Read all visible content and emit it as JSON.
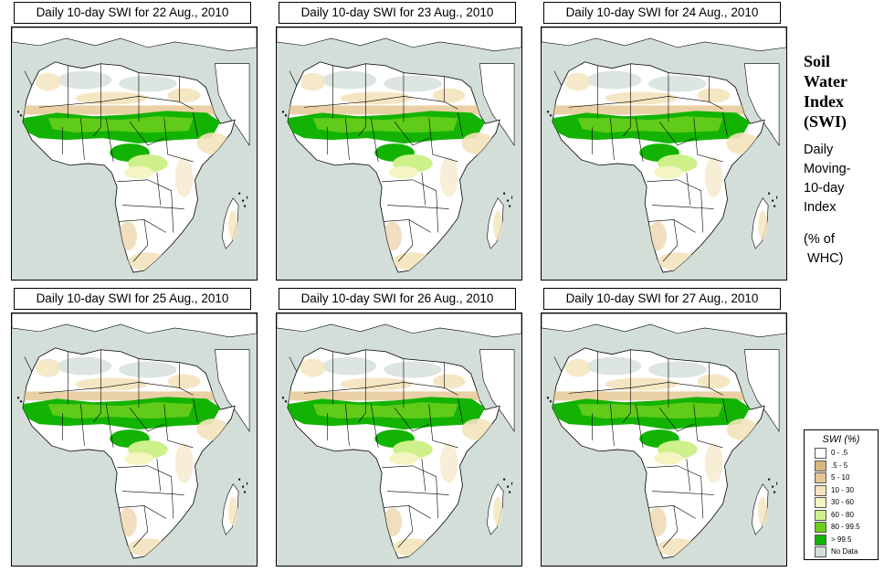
{
  "panels": [
    {
      "title": "Daily 10-day SWI for  22 Aug., 2010"
    },
    {
      "title": "Daily 10-day SWI for  23 Aug., 2010"
    },
    {
      "title": "Daily 10-day SWI for  24 Aug., 2010"
    },
    {
      "title": "Daily 10-day SWI for  25 Aug., 2010"
    },
    {
      "title": "Daily 10-day SWI for  26 Aug., 2010"
    },
    {
      "title": "Daily 10-day SWI for  27 Aug., 2010"
    }
  ],
  "sidebar": {
    "title_lines": [
      "Soil",
      "Water",
      "Index",
      "(SWI)"
    ],
    "subtitle_lines": [
      "Daily",
      "Moving-",
      "10-day",
      "Index"
    ],
    "unit_lines": [
      "(% of",
      " WHC)"
    ]
  },
  "legend": {
    "title": "SWI (%)",
    "items": [
      {
        "label": "0 - .5",
        "color": "#ffffff"
      },
      {
        "label": ".5 - 5",
        "color": "#d8b77f"
      },
      {
        "label": "5 - 10",
        "color": "#e6c895"
      },
      {
        "label": "10 - 30",
        "color": "#f4e3bd"
      },
      {
        "label": "30 - 60",
        "color": "#f4f5c2"
      },
      {
        "label": "60 - 80",
        "color": "#cdf08a"
      },
      {
        "label": "80 - 99.5",
        "color": "#69cd1c"
      },
      {
        "label": "> 99.5",
        "color": "#13b303"
      },
      {
        "label": "No Data",
        "color": "#d3ded8"
      }
    ]
  }
}
